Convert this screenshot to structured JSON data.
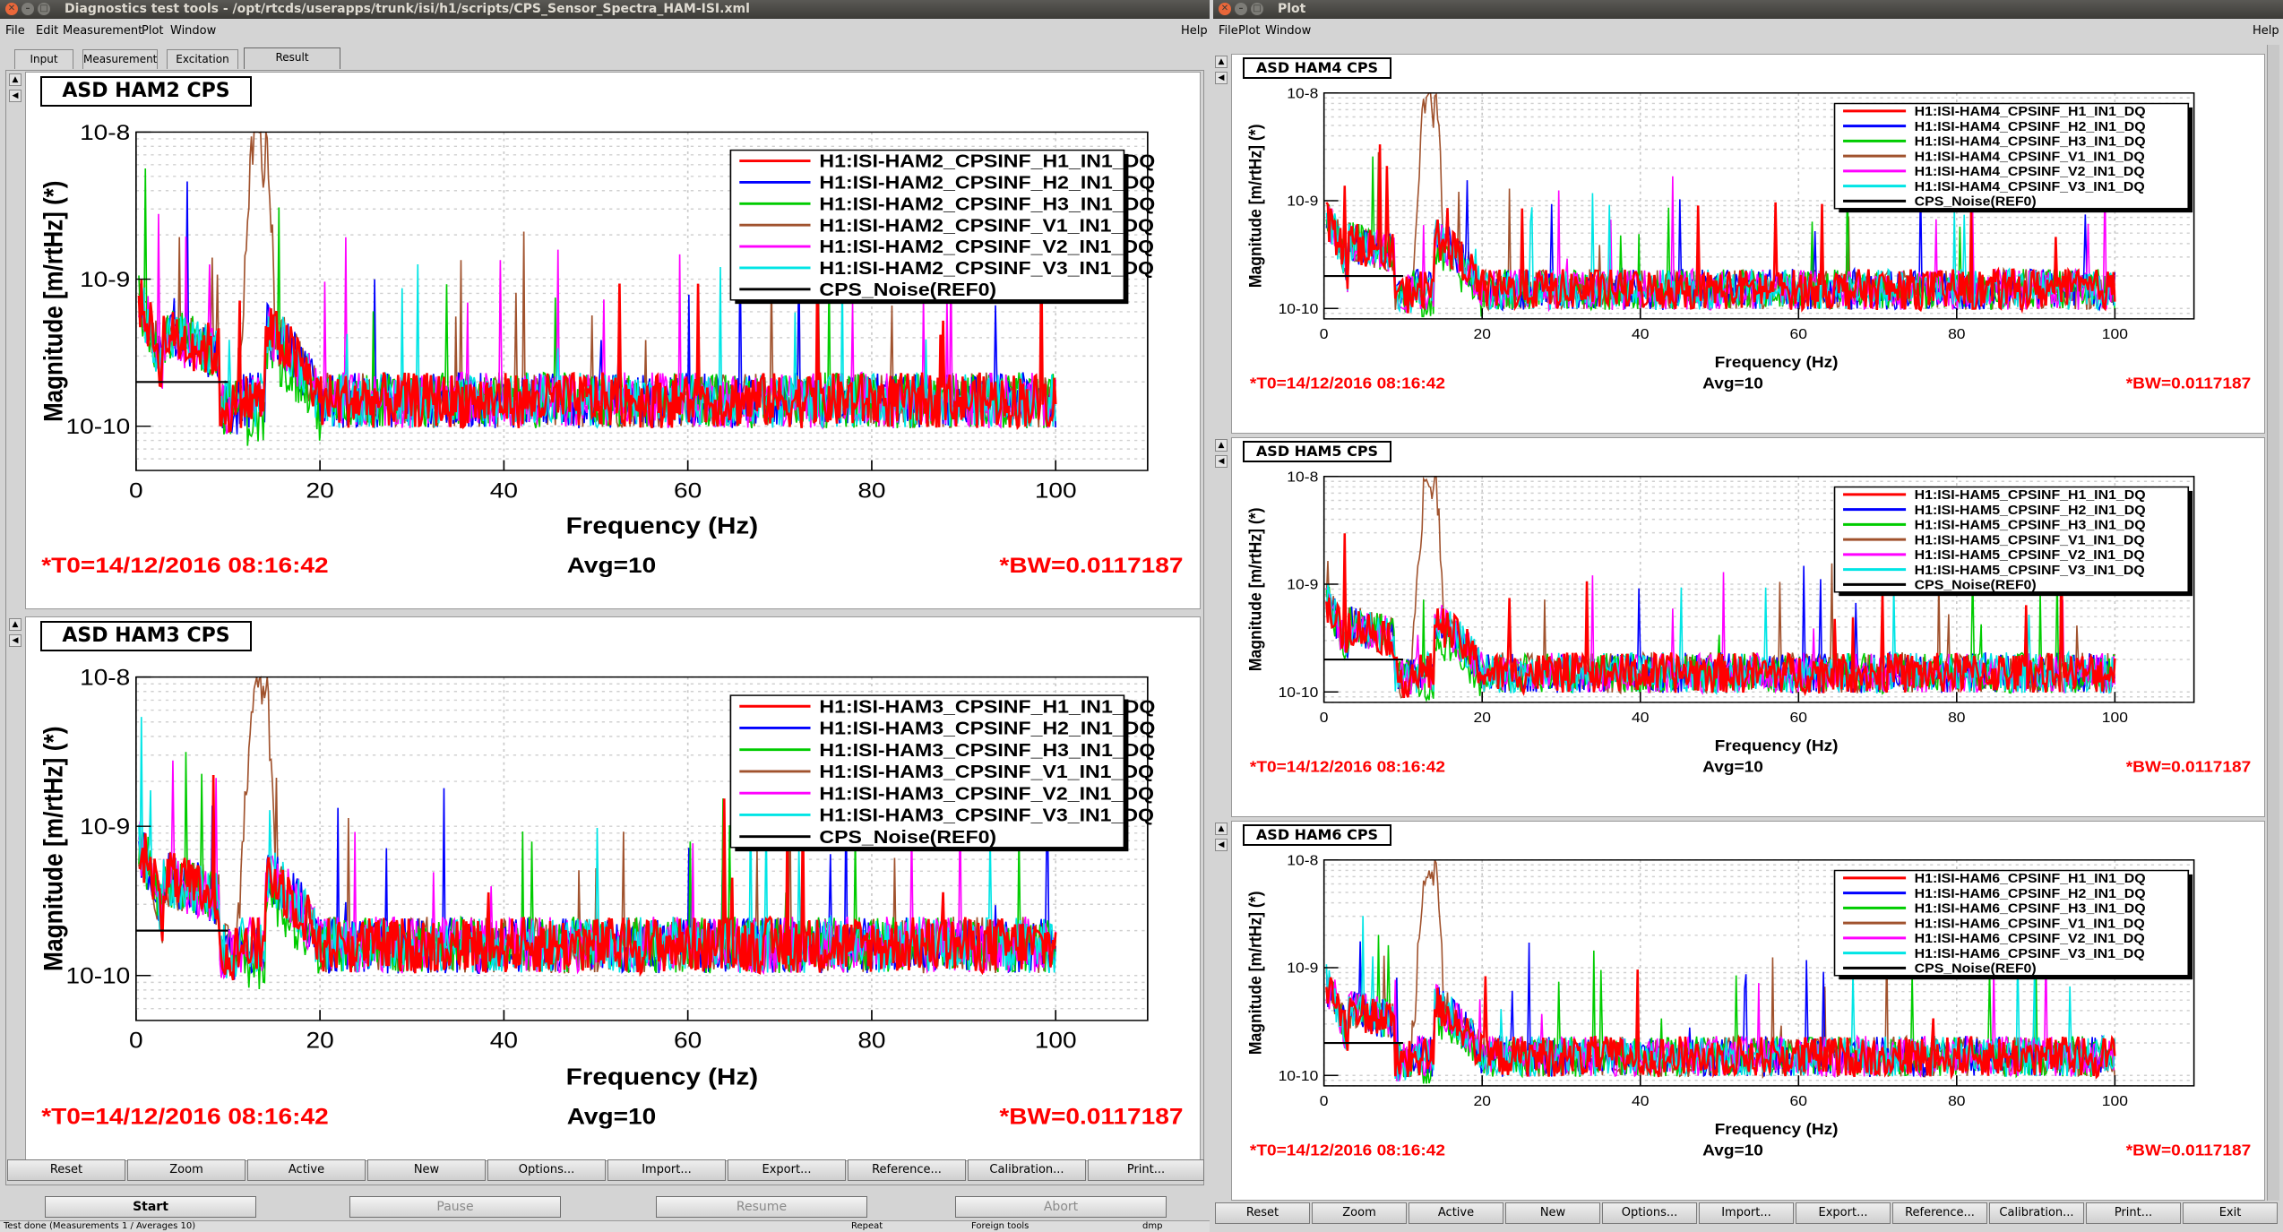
{
  "left_window": {
    "title": "Diagnostics test tools - /opt/rtcds/userapps/trunk/isi/h1/scripts/CPS_Sensor_Spectra_HAM-ISI.xml",
    "menu": [
      "File",
      "Edit",
      "Measurement",
      "Plot",
      "Window"
    ],
    "menu_help": "Help",
    "tabs": [
      "Input",
      "Measurement",
      "Excitation",
      "Result"
    ],
    "active_tab": "Result",
    "buttons": [
      "Reset",
      "Zoom",
      "Active",
      "New",
      "Options...",
      "Import...",
      "Export...",
      "Reference...",
      "Calibration...",
      "Print..."
    ],
    "controls": {
      "start": "Start",
      "pause": "Pause",
      "resume": "Resume",
      "abort": "Abort"
    },
    "status": {
      "left": "Test done (Measurements 1 / Averages 10)",
      "mid": "Repeat",
      "right": "Foreign tools",
      "far": "dmp"
    }
  },
  "right_window": {
    "title": "Plot",
    "menu": [
      "File",
      "Plot",
      "Window"
    ],
    "menu_help": "Help",
    "buttons": [
      "Reset",
      "Zoom",
      "Active",
      "New",
      "Options...",
      "Import...",
      "Export...",
      "Reference...",
      "Calibration...",
      "Print...",
      "Exit"
    ]
  },
  "plots": [
    {
      "id": "ham2",
      "title": "ASD HAM2 CPS",
      "size": "big",
      "ylabel": "Magnitude [m/rtHz] (*)",
      "xlabel": "Frequency (Hz)",
      "yticks": [
        "10-8",
        "10-9",
        "10-10"
      ],
      "xticks": [
        "0",
        "20",
        "40",
        "60",
        "80",
        "100"
      ],
      "legend": [
        "H1:ISI-HAM2_CPSINF_H1_IN1_DQ",
        "H1:ISI-HAM2_CPSINF_H2_IN1_DQ",
        "H1:ISI-HAM2_CPSINF_H3_IN1_DQ",
        "H1:ISI-HAM2_CPSINF_V1_IN1_DQ",
        "H1:ISI-HAM2_CPSINF_V2_IN1_DQ",
        "H1:ISI-HAM2_CPSINF_V3_IN1_DQ",
        "CPS_Noise(REF0)"
      ],
      "t0": "*T0=14/12/2016 08:16:42",
      "avg": "Avg=10",
      "bw": "*BW=0.0117187"
    },
    {
      "id": "ham3",
      "title": "ASD HAM3 CPS",
      "size": "big",
      "ylabel": "Magnitude [m/rtHz] (*)",
      "xlabel": "Frequency (Hz)",
      "yticks": [
        "10-8",
        "10-9",
        "10-10"
      ],
      "xticks": [
        "0",
        "20",
        "40",
        "60",
        "80",
        "100"
      ],
      "legend": [
        "H1:ISI-HAM3_CPSINF_H1_IN1_DQ",
        "H1:ISI-HAM3_CPSINF_H2_IN1_DQ",
        "H1:ISI-HAM3_CPSINF_H3_IN1_DQ",
        "H1:ISI-HAM3_CPSINF_V1_IN1_DQ",
        "H1:ISI-HAM3_CPSINF_V2_IN1_DQ",
        "H1:ISI-HAM3_CPSINF_V3_IN1_DQ",
        "CPS_Noise(REF0)"
      ],
      "t0": "*T0=14/12/2016 08:16:42",
      "avg": "Avg=10",
      "bw": "*BW=0.0117187"
    },
    {
      "id": "ham4",
      "title": "ASD HAM4 CPS",
      "size": "small",
      "ylabel": "Magnitude [m/rtHz] (*)",
      "xlabel": "Frequency (Hz)",
      "yticks": [
        "10-8",
        "10-9",
        "10-10"
      ],
      "xticks": [
        "0",
        "20",
        "40",
        "60",
        "80",
        "100"
      ],
      "legend": [
        "H1:ISI-HAM4_CPSINF_H1_IN1_DQ",
        "H1:ISI-HAM4_CPSINF_H2_IN1_DQ",
        "H1:ISI-HAM4_CPSINF_H3_IN1_DQ",
        "H1:ISI-HAM4_CPSINF_V1_IN1_DQ",
        "H1:ISI-HAM4_CPSINF_V2_IN1_DQ",
        "H1:ISI-HAM4_CPSINF_V3_IN1_DQ",
        "CPS_Noise(REF0)"
      ],
      "t0": "*T0=14/12/2016 08:16:42",
      "avg": "Avg=10",
      "bw": "*BW=0.0117187"
    },
    {
      "id": "ham5",
      "title": "ASD HAM5 CPS",
      "size": "small",
      "ylabel": "Magnitude [m/rtHz] (*)",
      "xlabel": "Frequency (Hz)",
      "yticks": [
        "10-8",
        "10-9",
        "10-10"
      ],
      "xticks": [
        "0",
        "20",
        "40",
        "60",
        "80",
        "100"
      ],
      "legend": [
        "H1:ISI-HAM5_CPSINF_H1_IN1_DQ",
        "H1:ISI-HAM5_CPSINF_H2_IN1_DQ",
        "H1:ISI-HAM5_CPSINF_H3_IN1_DQ",
        "H1:ISI-HAM5_CPSINF_V1_IN1_DQ",
        "H1:ISI-HAM5_CPSINF_V2_IN1_DQ",
        "H1:ISI-HAM5_CPSINF_V3_IN1_DQ",
        "CPS_Noise(REF0)"
      ],
      "t0": "*T0=14/12/2016 08:16:42",
      "avg": "Avg=10",
      "bw": "*BW=0.0117187"
    },
    {
      "id": "ham6",
      "title": "ASD HAM6 CPS",
      "size": "small",
      "ylabel": "Magnitude [m/rtHz] (*)",
      "xlabel": "Frequency (Hz)",
      "yticks": [
        "10-8",
        "10-9",
        "10-10"
      ],
      "xticks": [
        "0",
        "20",
        "40",
        "60",
        "80",
        "100"
      ],
      "legend": [
        "H1:ISI-HAM6_CPSINF_H1_IN1_DQ",
        "H1:ISI-HAM6_CPSINF_H2_IN1_DQ",
        "H1:ISI-HAM6_CPSINF_H3_IN1_DQ",
        "H1:ISI-HAM6_CPSINF_V1_IN1_DQ",
        "H1:ISI-HAM6_CPSINF_V2_IN1_DQ",
        "H1:ISI-HAM6_CPSINF_V3_IN1_DQ",
        "CPS_Noise(REF0)"
      ],
      "t0": "*T0=14/12/2016 08:16:42",
      "avg": "Avg=10",
      "bw": "*BW=0.0117187"
    }
  ],
  "chart_data": [
    {
      "type": "line",
      "title": "ASD HAM2 CPS",
      "xlabel": "Frequency (Hz)",
      "ylabel": "Magnitude [m/rtHz] (*)",
      "xlim": [
        0,
        110
      ],
      "ylim": [
        5e-11,
        1e-08
      ],
      "yscale": "log",
      "grid": true,
      "legend_position": "top-right",
      "series": [
        {
          "name": "H1:ISI-HAM2_CPSINF_H1_IN1_DQ",
          "color": "#ff0000",
          "level": 1.5e-10
        },
        {
          "name": "H1:ISI-HAM2_CPSINF_H2_IN1_DQ",
          "color": "#0000ff",
          "level": 1.5e-10
        },
        {
          "name": "H1:ISI-HAM2_CPSINF_H3_IN1_DQ",
          "color": "#00cc00",
          "level": 1.5e-10
        },
        {
          "name": "H1:ISI-HAM2_CPSINF_V1_IN1_DQ",
          "color": "#a0522d",
          "level": 1.5e-10,
          "peak": {
            "x": 13,
            "y": 1e-08
          }
        },
        {
          "name": "H1:ISI-HAM2_CPSINF_V2_IN1_DQ",
          "color": "#ff00ff",
          "level": 1.5e-10
        },
        {
          "name": "H1:ISI-HAM2_CPSINF_V3_IN1_DQ",
          "color": "#00e5e5",
          "level": 1.5e-10
        },
        {
          "name": "CPS_Noise(REF0)",
          "color": "#000000",
          "x": [
            0,
            10
          ],
          "y": [
            2e-10,
            2e-10
          ]
        }
      ]
    },
    {
      "type": "line",
      "title": "ASD HAM3 CPS",
      "xlabel": "Frequency (Hz)",
      "ylabel": "Magnitude [m/rtHz] (*)",
      "xlim": [
        0,
        110
      ],
      "ylim": [
        5e-11,
        1e-08
      ],
      "yscale": "log",
      "grid": true,
      "legend_position": "top-right",
      "series": [
        {
          "name": "H1:ISI-HAM3_CPSINF_H1_IN1_DQ",
          "color": "#ff0000",
          "level": 1.6e-10
        },
        {
          "name": "H1:ISI-HAM3_CPSINF_H2_IN1_DQ",
          "color": "#0000ff",
          "level": 1.6e-10
        },
        {
          "name": "H1:ISI-HAM3_CPSINF_H3_IN1_DQ",
          "color": "#00cc00",
          "level": 1.6e-10
        },
        {
          "name": "H1:ISI-HAM3_CPSINF_V1_IN1_DQ",
          "color": "#a0522d",
          "level": 1.6e-10,
          "peak": {
            "x": 13,
            "y": 1e-08
          }
        },
        {
          "name": "H1:ISI-HAM3_CPSINF_V2_IN1_DQ",
          "color": "#ff00ff",
          "level": 1.6e-10
        },
        {
          "name": "H1:ISI-HAM3_CPSINF_V3_IN1_DQ",
          "color": "#00e5e5",
          "level": 1.6e-10
        },
        {
          "name": "CPS_Noise(REF0)",
          "color": "#000000",
          "x": [
            0,
            10
          ],
          "y": [
            2e-10,
            2e-10
          ]
        }
      ]
    },
    {
      "type": "line",
      "title": "ASD HAM4 CPS",
      "xlabel": "Frequency (Hz)",
      "ylabel": "Magnitude [m/rtHz] (*)",
      "xlim": [
        0,
        110
      ],
      "ylim": [
        8e-11,
        1e-08
      ],
      "yscale": "log",
      "grid": true,
      "legend_position": "top-right",
      "series": [
        {
          "name": "H1:ISI-HAM4_CPSINF_H1_IN1_DQ",
          "color": "#ff0000",
          "level": 1.5e-10
        },
        {
          "name": "H1:ISI-HAM4_CPSINF_H2_IN1_DQ",
          "color": "#0000ff",
          "level": 1.5e-10
        },
        {
          "name": "H1:ISI-HAM4_CPSINF_H3_IN1_DQ",
          "color": "#00cc00",
          "level": 1.5e-10
        },
        {
          "name": "H1:ISI-HAM4_CPSINF_V1_IN1_DQ",
          "color": "#a0522d",
          "level": 1.5e-10,
          "peak": {
            "x": 13,
            "y": 1e-08
          }
        },
        {
          "name": "H1:ISI-HAM4_CPSINF_V2_IN1_DQ",
          "color": "#ff00ff",
          "level": 1.5e-10
        },
        {
          "name": "H1:ISI-HAM4_CPSINF_V3_IN1_DQ",
          "color": "#00e5e5",
          "level": 1.5e-10
        },
        {
          "name": "CPS_Noise(REF0)",
          "color": "#000000",
          "x": [
            0,
            10
          ],
          "y": [
            2e-10,
            2e-10
          ]
        }
      ]
    },
    {
      "type": "line",
      "title": "ASD HAM5 CPS",
      "xlabel": "Frequency (Hz)",
      "ylabel": "Magnitude [m/rtHz] (*)",
      "xlim": [
        0,
        110
      ],
      "ylim": [
        8e-11,
        1e-08
      ],
      "yscale": "log",
      "grid": true,
      "legend_position": "top-right",
      "series": [
        {
          "name": "H1:ISI-HAM5_CPSINF_H1_IN1_DQ",
          "color": "#ff0000",
          "level": 1.5e-10
        },
        {
          "name": "H1:ISI-HAM5_CPSINF_H2_IN1_DQ",
          "color": "#0000ff",
          "level": 1.5e-10
        },
        {
          "name": "H1:ISI-HAM5_CPSINF_H3_IN1_DQ",
          "color": "#00cc00",
          "level": 1.5e-10
        },
        {
          "name": "H1:ISI-HAM5_CPSINF_V1_IN1_DQ",
          "color": "#a0522d",
          "level": 1.5e-10,
          "peak": {
            "x": 13,
            "y": 1e-08
          }
        },
        {
          "name": "H1:ISI-HAM5_CPSINF_V2_IN1_DQ",
          "color": "#ff00ff",
          "level": 1.5e-10
        },
        {
          "name": "H1:ISI-HAM5_CPSINF_V3_IN1_DQ",
          "color": "#00e5e5",
          "level": 1.5e-10
        },
        {
          "name": "CPS_Noise(REF0)",
          "color": "#000000",
          "x": [
            0,
            10
          ],
          "y": [
            2e-10,
            2e-10
          ]
        }
      ]
    },
    {
      "type": "line",
      "title": "ASD HAM6 CPS",
      "xlabel": "Frequency (Hz)",
      "ylabel": "Magnitude [m/rtHz] (*)",
      "xlim": [
        0,
        110
      ],
      "ylim": [
        8e-11,
        1e-08
      ],
      "yscale": "log",
      "grid": true,
      "legend_position": "top-right",
      "series": [
        {
          "name": "H1:ISI-HAM6_CPSINF_H1_IN1_DQ",
          "color": "#ff0000",
          "level": 1.5e-10
        },
        {
          "name": "H1:ISI-HAM6_CPSINF_H2_IN1_DQ",
          "color": "#0000ff",
          "level": 1.5e-10
        },
        {
          "name": "H1:ISI-HAM6_CPSINF_H3_IN1_DQ",
          "color": "#00cc00",
          "level": 1.5e-10
        },
        {
          "name": "H1:ISI-HAM6_CPSINF_V1_IN1_DQ",
          "color": "#a0522d",
          "level": 1.5e-10,
          "peak": {
            "x": 13,
            "y": 1e-08
          }
        },
        {
          "name": "H1:ISI-HAM6_CPSINF_V2_IN1_DQ",
          "color": "#ff00ff",
          "level": 1.5e-10
        },
        {
          "name": "H1:ISI-HAM6_CPSINF_V3_IN1_DQ",
          "color": "#00e5e5",
          "level": 1.5e-10
        },
        {
          "name": "CPS_Noise(REF0)",
          "color": "#000000",
          "x": [
            0,
            10
          ],
          "y": [
            2e-10,
            2e-10
          ]
        }
      ]
    }
  ]
}
